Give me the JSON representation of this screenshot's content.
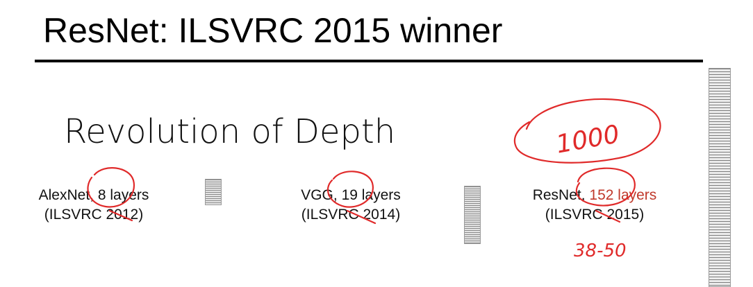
{
  "slide": {
    "title": "ResNet: ILSVRC 2015 winner",
    "subtitle": "Revolution of Depth",
    "models": [
      {
        "name": "AlexNet,",
        "layers": "8 layers",
        "competition": "(ILSVRC 2012)"
      },
      {
        "name": "VGG,",
        "layers": "19 layers",
        "competition": "(ILSVRC 2014)"
      },
      {
        "name": "ResNet,",
        "layers": "152 layers",
        "competition": "(ILSVRC 2015)"
      }
    ]
  },
  "annotations": {
    "note_1000": "1000",
    "note_depths": "38-50"
  },
  "colors": {
    "ink": "#e02a2a",
    "highlight": "#c0392b",
    "rule": "#000000"
  },
  "icons": [
    "alexnet-stack-icon",
    "vgg-stack-icon",
    "resnet-stack-icon"
  ]
}
